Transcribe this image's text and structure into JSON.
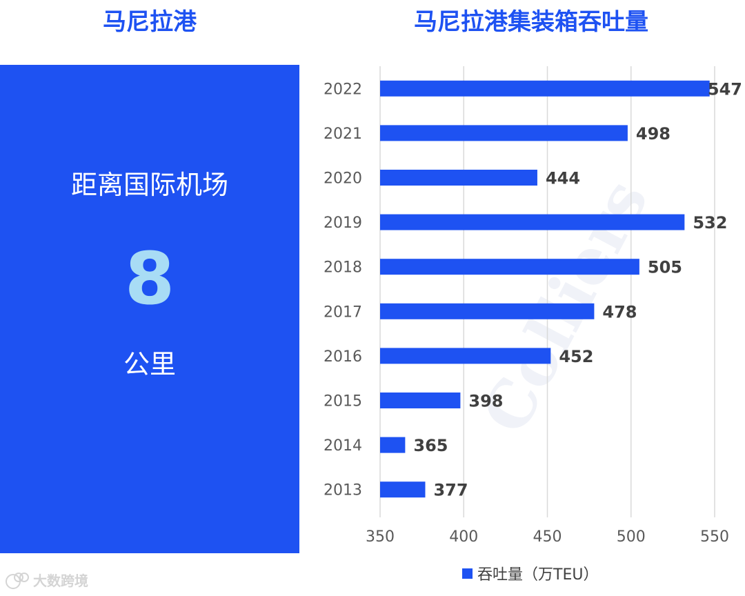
{
  "left_panel": {
    "title": "马尼拉港",
    "label": "距离国际机场",
    "value": "8",
    "unit": "公里"
  },
  "logo": {
    "text": "大数跨境"
  },
  "watermark": "Colliers",
  "colors": {
    "accent": "#1e52f2",
    "number": "#a8dcf5",
    "value_label": "#404040",
    "axis_text": "#595959",
    "grid": "#d9d9d9"
  },
  "chart_data": {
    "type": "bar",
    "orientation": "horizontal",
    "title": "马尼拉港集装箱吞吐量",
    "categories": [
      "2022",
      "2021",
      "2020",
      "2019",
      "2018",
      "2017",
      "2016",
      "2015",
      "2014",
      "2013"
    ],
    "series": [
      {
        "name": "吞吐量（万TEU）",
        "values": [
          547,
          498,
          444,
          532,
          505,
          478,
          452,
          398,
          365,
          377
        ]
      }
    ],
    "value_labels": [
      "547",
      "498",
      "444",
      "532",
      "505",
      "478",
      "452",
      "398",
      "365",
      "377"
    ],
    "x_ticks": [
      "350",
      "400",
      "450",
      "500",
      "550"
    ],
    "x_tick_values": [
      350,
      400,
      450,
      500,
      550
    ],
    "xlim": [
      350,
      550
    ],
    "grid": true,
    "legend": "bottom"
  }
}
